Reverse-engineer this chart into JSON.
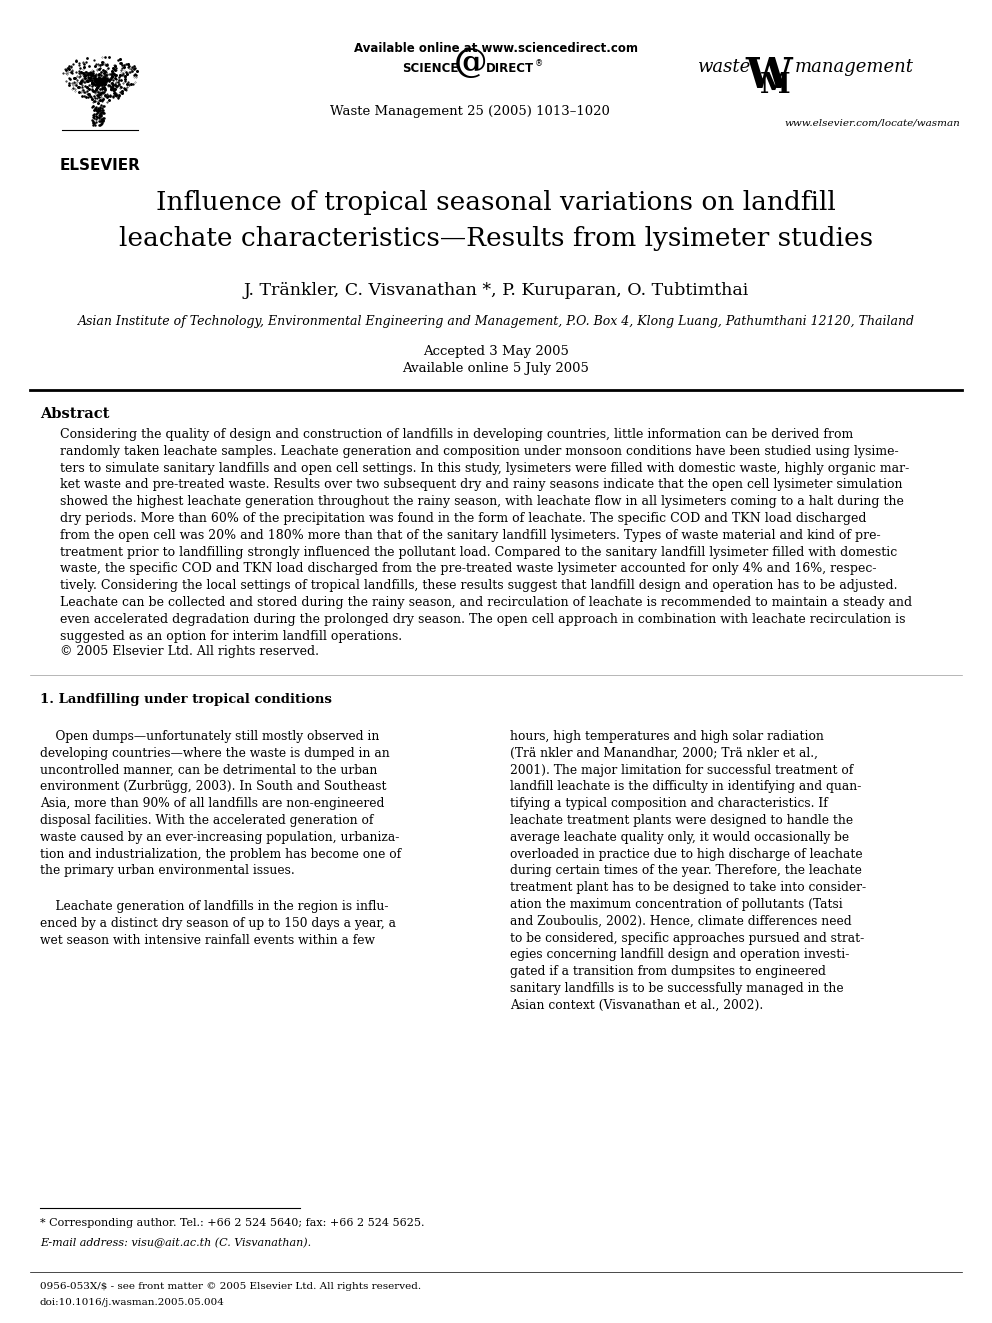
{
  "background_color": "#ffffff",
  "available_online": "Available online at www.sciencedirect.com",
  "journal_info": "Waste Management 25 (2005) 1013–1020",
  "website": "www.elsevier.com/locate/wasman",
  "title_line1": "Influence of tropical seasonal variations on landfill",
  "title_line2": "leachate characteristics—Results from lysimeter studies",
  "authors": "J. Tränkler, C. Visvanathan *, P. Kuruparan, O. Tubtimthai",
  "affiliation": "Asian Institute of Technology, Environmental Engineering and Management, P.O. Box 4, Klong Luang, Pathumthani 12120, Thailand",
  "accepted": "Accepted 3 May 2005",
  "available": "Available online 5 July 2005",
  "abstract_title": "Abstract",
  "abstract_text": "Considering the quality of design and construction of landfills in developing countries, little information can be derived from\nrandomly taken leachate samples. Leachate generation and composition under monsoon conditions have been studied using lysime-\nters to simulate sanitary landfills and open cell settings. In this study, lysimeters were filled with domestic waste, highly organic mar-\nket waste and pre-treated waste. Results over two subsequent dry and rainy seasons indicate that the open cell lysimeter simulation\nshowed the highest leachate generation throughout the rainy season, with leachate flow in all lysimeters coming to a halt during the\ndry periods. More than 60% of the precipitation was found in the form of leachate. The specific COD and TKN load discharged\nfrom the open cell was 20% and 180% more than that of the sanitary landfill lysimeters. Types of waste material and kind of pre-\ntreatment prior to landfilling strongly influenced the pollutant load. Compared to the sanitary landfill lysimeter filled with domestic\nwaste, the specific COD and TKN load discharged from the pre-treated waste lysimeter accounted for only 4% and 16%, respec-\ntively. Considering the local settings of tropical landfills, these results suggest that landfill design and operation has to be adjusted.\nLeachate can be collected and stored during the rainy season, and recirculation of leachate is recommended to maintain a steady and\neven accelerated degradation during the prolonged dry season. The open cell approach in combination with leachate recirculation is\nsuggested as an option for interim landfill operations.",
  "copyright": "© 2005 Elsevier Ltd. All rights reserved.",
  "sec1_title": "1. Landfilling under tropical conditions",
  "sec1_col1_para1": "    Open dumps—unfortunately still mostly observed in\ndeveloping countries—where the waste is dumped in an\nuncontrolled manner, can be detrimental to the urban\nenvironment (Zurbrügg, 2003). In South and Southeast\nAsia, more than 90% of all landfills are non-engineered\ndisposal facilities. With the accelerated generation of\nwaste caused by an ever-increasing population, urbaniza-\ntion and industrialization, the problem has become one of\nthe primary urban environmental issues.",
  "sec1_col1_para2": "    Leachate generation of landfills in the region is influ-\nenced by a distinct dry season of up to 150 days a year, a\nwet season with intensive rainfall events within a few",
  "sec1_col2_text": "hours, high temperatures and high solar radiation\n(Trä nkler and Manandhar, 2000; Trä nkler et al.,\n2001). The major limitation for successful treatment of\nlandfill leachate is the difficulty in identifying and quan-\ntifying a typical composition and characteristics. If\nleachate treatment plants were designed to handle the\naverage leachate quality only, it would occasionally be\noverloaded in practice due to high discharge of leachate\nduring certain times of the year. Therefore, the leachate\ntreatment plant has to be designed to take into consider-\nation the maximum concentration of pollutants (Tatsi\nand Zouboulis, 2002). Hence, climate differences need\nto be considered, specific approaches pursued and strat-\negies concerning landfill design and operation investi-\ngated if a transition from dumpsites to engineered\nsanitary landfills is to be successfully managed in the\nAsian context (Visvanathan et al., 2002).",
  "footnote_line": "* Corresponding author. Tel.: +66 2 524 5640; fax: +66 2 524 5625.",
  "footnote_email": "E-mail address: visu@ait.ac.th (C. Visvanathan).",
  "issn": "0956-053X/$ - see front matter © 2005 Elsevier Ltd. All rights reserved.",
  "doi": "doi:10.1016/j.wasman.2005.05.004"
}
